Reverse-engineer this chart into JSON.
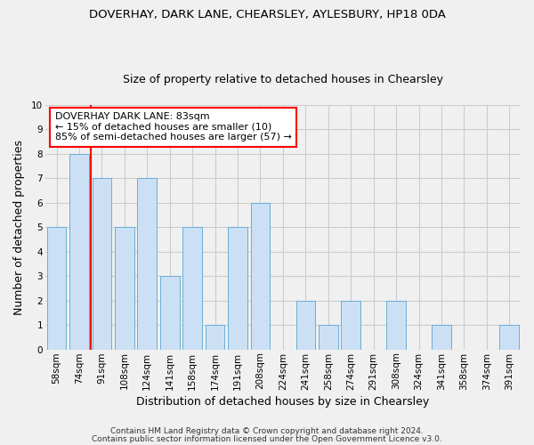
{
  "title": "DOVERHAY, DARK LANE, CHEARSLEY, AYLESBURY, HP18 0DA",
  "subtitle": "Size of property relative to detached houses in Chearsley",
  "xlabel": "Distribution of detached houses by size in Chearsley",
  "ylabel": "Number of detached properties",
  "categories": [
    "58sqm",
    "74sqm",
    "91sqm",
    "108sqm",
    "124sqm",
    "141sqm",
    "158sqm",
    "174sqm",
    "191sqm",
    "208sqm",
    "224sqm",
    "241sqm",
    "258sqm",
    "274sqm",
    "291sqm",
    "308sqm",
    "324sqm",
    "341sqm",
    "358sqm",
    "374sqm",
    "391sqm"
  ],
  "values": [
    5,
    8,
    7,
    5,
    7,
    3,
    5,
    1,
    5,
    6,
    0,
    2,
    1,
    2,
    0,
    2,
    0,
    1,
    0,
    0,
    1
  ],
  "bar_color": "#cce0f5",
  "bar_edge_color": "#6aaed6",
  "grid_color": "#cccccc",
  "bg_color": "#f0f0f0",
  "vline_x": 1.5,
  "vline_color": "red",
  "annotation_title": "DOVERHAY DARK LANE: 83sqm",
  "annotation_line1": "← 15% of detached houses are smaller (10)",
  "annotation_line2": "85% of semi-detached houses are larger (57) →",
  "annotation_box_color": "white",
  "annotation_box_edge": "red",
  "footer1": "Contains HM Land Registry data © Crown copyright and database right 2024.",
  "footer2": "Contains public sector information licensed under the Open Government Licence v3.0.",
  "ylim": [
    0,
    10
  ],
  "yticks": [
    0,
    1,
    2,
    3,
    4,
    5,
    6,
    7,
    8,
    9,
    10
  ],
  "title_fontsize": 9.5,
  "subtitle_fontsize": 9,
  "xlabel_fontsize": 9,
  "ylabel_fontsize": 9,
  "tick_fontsize": 7.5,
  "ann_fontsize": 8,
  "footer_fontsize": 6.5
}
